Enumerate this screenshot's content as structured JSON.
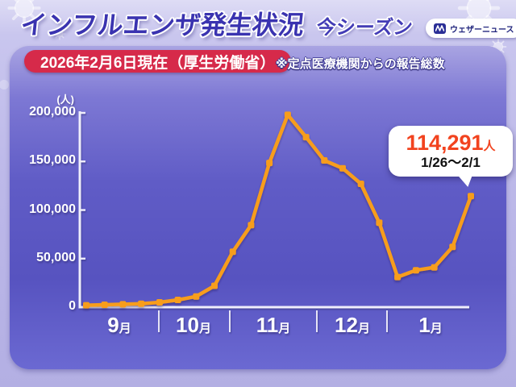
{
  "header": {
    "title": "インフルエンザ発生状況",
    "season_label": "今シーズン",
    "logo_text": "ウェザーニュース",
    "date_badge": "2026年2月6日現在（厚生労働省）",
    "note": "※定点医療機関からの報告総数"
  },
  "callout": {
    "value": "114,291",
    "unit": "人",
    "period": "1/26～2/1"
  },
  "colors": {
    "line_orange": "#f79d1b",
    "badge_red": "#d62a4a",
    "title_blue": "#3a33b0",
    "callout_red": "#f2431f",
    "axis_white": "#efeefb"
  },
  "chart_data": {
    "type": "line",
    "title": "インフルエンザ発生状況 今シーズン",
    "ylabel_unit": "(人)",
    "ylim": [
      0,
      200000
    ],
    "y_ticks": [
      0,
      50000,
      100000,
      150000,
      200000
    ],
    "y_tick_labels": [
      "0",
      "50,000",
      "100,000",
      "150,000",
      "200,000"
    ],
    "x_month_labels": [
      "9月",
      "10月",
      "11月",
      "12月",
      "1月"
    ],
    "grid": false,
    "legend": "none",
    "values": [
      2000,
      2500,
      3000,
      3500,
      5000,
      7500,
      11000,
      22000,
      57000,
      84500,
      148500,
      198000,
      175000,
      151000,
      143000,
      127000,
      87000,
      31000,
      38000,
      41000,
      62000,
      114291
    ],
    "last_point_value": 114291,
    "last_point_label": "114,291人",
    "last_point_period": "1/26～2/1",
    "line_color": "#f79d1b"
  }
}
